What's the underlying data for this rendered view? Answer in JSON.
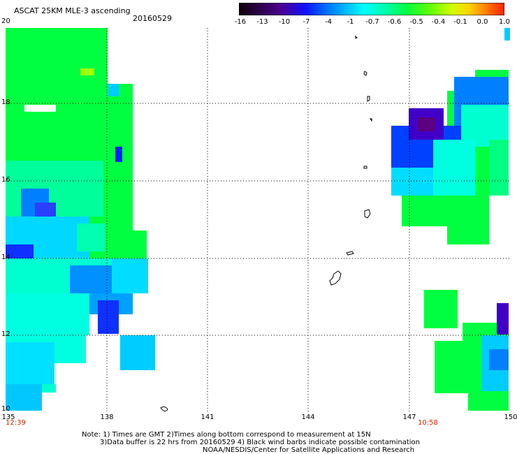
{
  "header": {
    "title": "ASCAT 25KM MLE-3 ascending",
    "date": "20160529"
  },
  "colorbar": {
    "labels": [
      "-16",
      "-13",
      "-10",
      "-7",
      "-4",
      "-1",
      "-0.7",
      "-0.6",
      "-0.5",
      "-0.4",
      "-0.1",
      "0.0",
      "1.0"
    ],
    "colors": [
      "#1a0010",
      "#3a0060",
      "#2a00c8",
      "#0030ff",
      "#0090ff",
      "#00d0ff",
      "#00ffe0",
      "#00ff90",
      "#00ff20",
      "#a0ff00",
      "#ffe000",
      "#ff8000",
      "#ff2000"
    ]
  },
  "axes": {
    "lat_labels": [
      "20",
      "18",
      "16",
      "14",
      "12",
      "10"
    ],
    "lon_labels": [
      "135",
      "138",
      "141",
      "144",
      "147",
      "150"
    ]
  },
  "times": {
    "left": "12:39",
    "right": "10:58"
  },
  "notes": {
    "line1": "Note: 1) Times are GMT 2)Times along bottom correspond to measurement at 15N",
    "line2": "3)Data buffer is 22 hrs from 20160529 4) Black wind barbs indicate possible contamination",
    "line3": "NOAA/NESDIS/Center for Satellite Applications and Research"
  }
}
